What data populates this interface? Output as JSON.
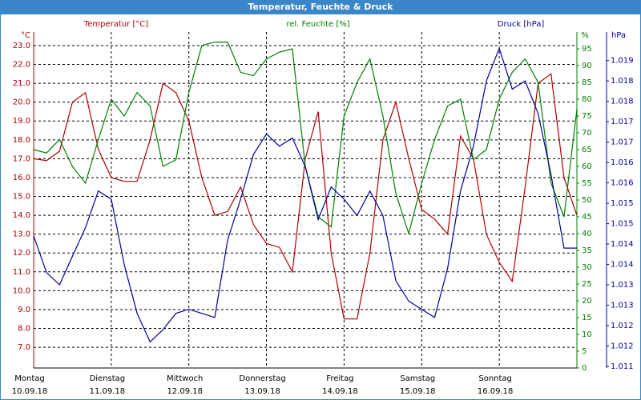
{
  "chart_data": {
    "type": "line",
    "title": "Temperatur, Feuchte & Druck",
    "x": [
      0,
      4,
      8,
      12,
      16,
      20,
      24,
      28,
      32,
      36,
      40,
      44,
      48,
      52,
      56,
      60,
      64,
      68,
      72,
      76,
      80,
      84,
      88,
      92,
      96,
      100,
      104,
      108,
      112,
      116,
      120,
      124,
      128,
      132,
      136,
      140,
      144,
      148,
      152,
      156,
      160,
      164,
      168
    ],
    "xlim": [
      0,
      168
    ],
    "xticks": [
      0,
      24,
      48,
      72,
      96,
      120,
      144
    ],
    "x_labels": [
      {
        "day": "Montag",
        "date": "10.09.18"
      },
      {
        "day": "Dienstag",
        "date": "11.09.18"
      },
      {
        "day": "Mittwoch",
        "date": "12.09.18"
      },
      {
        "day": "Donnerstag",
        "date": "13.09.18"
      },
      {
        "day": "Freitag",
        "date": "14.09.18"
      },
      {
        "day": "Samstag",
        "date": "15.09.18"
      },
      {
        "day": "Sonntag",
        "date": "16.09.18"
      }
    ],
    "grid": true,
    "ylabel": "°C",
    "y2label": "%",
    "y3label": "hPa",
    "ylim": [
      5.9,
      23.72
    ],
    "yticks": [
      {
        "value": 7,
        "label": "7.0"
      },
      {
        "value": 8,
        "label": "8.0"
      },
      {
        "value": 9,
        "label": "9.0"
      },
      {
        "value": 10,
        "label": "10.0"
      },
      {
        "value": 11,
        "label": "11.0"
      },
      {
        "value": 12,
        "label": "12.0"
      },
      {
        "value": 13,
        "label": "13.0"
      },
      {
        "value": 14,
        "label": "14.0"
      },
      {
        "value": 15,
        "label": "15.0"
      },
      {
        "value": 16,
        "label": "16.0"
      },
      {
        "value": 17,
        "label": "17.0"
      },
      {
        "value": 18,
        "label": "18.0"
      },
      {
        "value": 19,
        "label": "19.0"
      },
      {
        "value": 20,
        "label": "20.0"
      },
      {
        "value": 21,
        "label": "21.0"
      },
      {
        "value": 22,
        "label": "22.0"
      },
      {
        "value": 23,
        "label": "23.0"
      }
    ],
    "y2lim": [
      0,
      100
    ],
    "y2ticks": [
      0,
      5,
      10,
      15,
      20,
      25,
      30,
      35,
      40,
      45,
      50,
      55,
      60,
      65,
      70,
      75,
      80,
      85,
      90,
      95
    ],
    "y3lim": [
      1010.96,
      1019.2
    ],
    "y3ticks": [
      {
        "value": 1011,
        "label": "1.011"
      },
      {
        "value": 1011.5,
        "label": "1.012"
      },
      {
        "value": 1012,
        "label": "1.012"
      },
      {
        "value": 1012.5,
        "label": "1.013"
      },
      {
        "value": 1013,
        "label": "1.013"
      },
      {
        "value": 1013.5,
        "label": "1.014"
      },
      {
        "value": 1014,
        "label": "1.014"
      },
      {
        "value": 1014.5,
        "label": "1.015"
      },
      {
        "value": 1015,
        "label": "1.015"
      },
      {
        "value": 1015.5,
        "label": "1.016"
      },
      {
        "value": 1016,
        "label": "1.016"
      },
      {
        "value": 1016.5,
        "label": "1.017"
      },
      {
        "value": 1017,
        "label": "1.017"
      },
      {
        "value": 1017.5,
        "label": "1.018"
      },
      {
        "value": 1018,
        "label": "1.018"
      },
      {
        "value": 1018.5,
        "label": "1.019"
      }
    ],
    "series": [
      {
        "name": "Temperatur [°C]",
        "color": "#b00000",
        "axis": "y",
        "values": [
          17.0,
          16.9,
          17.4,
          20.0,
          20.5,
          17.5,
          16.0,
          15.8,
          15.8,
          18.0,
          21.0,
          20.5,
          19.0,
          16.0,
          14.0,
          14.2,
          15.5,
          13.5,
          12.5,
          12.3,
          11.0,
          17.0,
          19.5,
          12.0,
          8.5,
          8.5,
          12.0,
          18.0,
          20.0,
          17.0,
          14.3,
          13.8,
          13.0,
          18.2,
          17.0,
          13.0,
          11.5,
          10.5,
          15.5,
          21.0,
          21.5,
          16.0,
          14.0
        ]
      },
      {
        "name": "rel. Feuchte [%]",
        "color": "#008000",
        "axis": "y2",
        "values": [
          65,
          64,
          68,
          60,
          55,
          68,
          80,
          75,
          82,
          78,
          60,
          62,
          82,
          96,
          97,
          97,
          88,
          87,
          92,
          94,
          95,
          60,
          45,
          42,
          75,
          85,
          92,
          75,
          52,
          40,
          55,
          68,
          78,
          80,
          62,
          65,
          80,
          88,
          92,
          85,
          55,
          45,
          77
        ]
      },
      {
        "name": "Druck [hPa]",
        "color": "#0000a0",
        "axis": "y3",
        "values": [
          1014.2,
          1013.3,
          1013.0,
          1013.7,
          1014.4,
          1015.3,
          1015.1,
          1013.5,
          1012.3,
          1011.6,
          1011.9,
          1012.3,
          1012.4,
          1012.3,
          1012.2,
          1014.1,
          1015.1,
          1016.2,
          1016.7,
          1016.4,
          1016.6,
          1015.9,
          1014.6,
          1015.4,
          1015.1,
          1014.7,
          1015.3,
          1014.7,
          1013.1,
          1012.6,
          1012.4,
          1012.2,
          1013.4,
          1015.3,
          1016.4,
          1018.0,
          1018.8,
          1017.8,
          1018.0,
          1017.2,
          1015.7,
          1013.9,
          1013.9
        ]
      }
    ]
  }
}
